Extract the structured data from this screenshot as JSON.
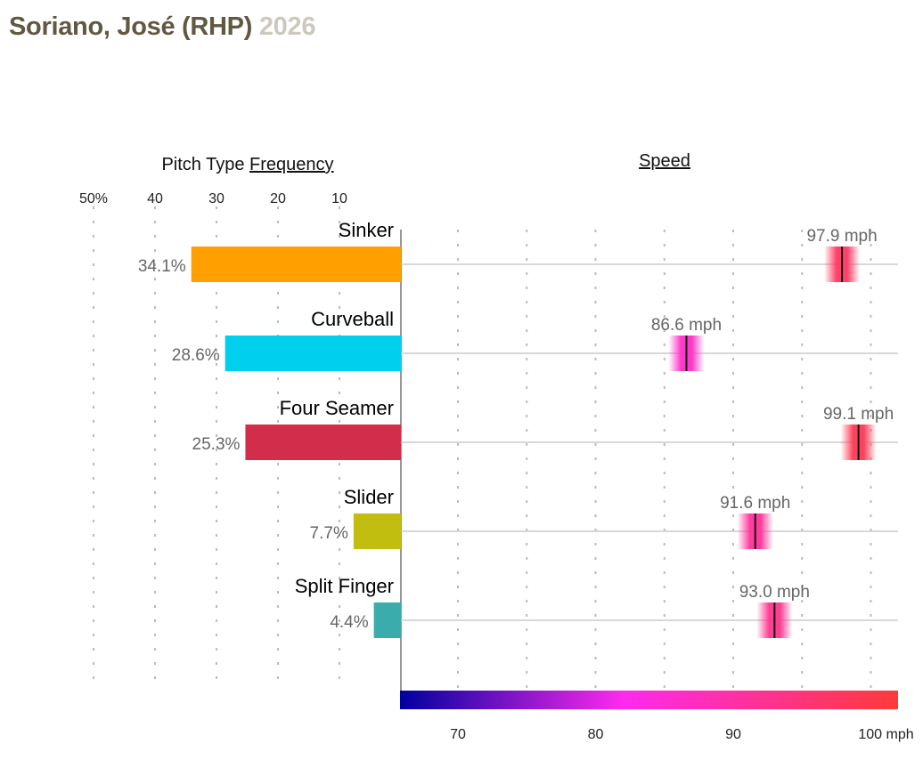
{
  "header": {
    "player": "Soriano, José (RHP)",
    "year": "2026"
  },
  "chart_data": [
    {
      "type": "bar",
      "title_prefix": "Pitch Type ",
      "title_link": "Frequency",
      "orientation": "horizontal-left",
      "categories": [
        "Sinker",
        "Curveball",
        "Four Seamer",
        "Slider",
        "Split Finger"
      ],
      "values": [
        34.1,
        28.6,
        25.3,
        7.7,
        4.4
      ],
      "value_labels": [
        "34.1%",
        "28.6%",
        "25.3%",
        "7.7%",
        "4.4%"
      ],
      "colors": [
        "#ff9f00",
        "#00d0ee",
        "#d22e4b",
        "#c2be10",
        "#3aacac"
      ],
      "xlim": [
        0,
        50
      ],
      "ticks": [
        50,
        40,
        30,
        20,
        10
      ],
      "tick_labels": [
        "50%",
        "40",
        "30",
        "20",
        "10"
      ],
      "grid": true
    },
    {
      "type": "scatter",
      "title": "Speed",
      "categories": [
        "Sinker",
        "Curveball",
        "Four Seamer",
        "Slider",
        "Split Finger"
      ],
      "values": [
        97.9,
        86.6,
        99.1,
        91.6,
        93.0
      ],
      "value_labels": [
        "97.9 mph",
        "86.6 mph",
        "99.1 mph",
        "91.6 mph",
        "93.0 mph"
      ],
      "xlim": [
        65.9,
        102
      ],
      "ticks": [
        70,
        80,
        90,
        100
      ],
      "tick_labels": [
        "70",
        "80",
        "90",
        "100 mph"
      ],
      "grid": true,
      "color_scale": {
        "low": "#0000a0",
        "mid": "#ff2aee",
        "high": "#ff3a3a"
      }
    }
  ]
}
